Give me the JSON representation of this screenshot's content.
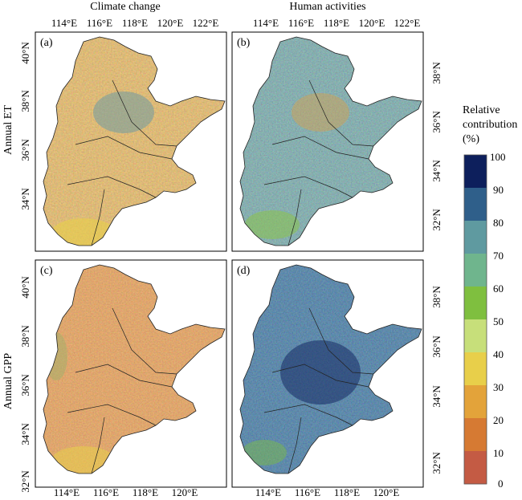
{
  "columns": {
    "left": "Climate change",
    "right": "Human activities"
  },
  "rows": {
    "top": "Annual ET",
    "bottom": "Annual GPP"
  },
  "panels": [
    {
      "label": "(a)",
      "variable": "Annual ET",
      "driver": "Climate change",
      "palette": "warm"
    },
    {
      "label": "(b)",
      "variable": "Annual ET",
      "driver": "Human activities",
      "palette": "cool"
    },
    {
      "label": "(c)",
      "variable": "Annual GPP",
      "driver": "Climate change",
      "palette": "warm2"
    },
    {
      "label": "(d)",
      "variable": "Annual GPP",
      "driver": "Human activities",
      "palette": "cool2"
    }
  ],
  "axes": {
    "top_lon_labels": [
      "114°E",
      "116°E",
      "118°E",
      "120°E",
      "122°E"
    ],
    "bottom_lon_labels": [
      "114°E",
      "116°E",
      "118°E",
      "120°E"
    ],
    "left_lat_labels_top": [
      "40°N",
      "38°N",
      "36°N",
      "34°N"
    ],
    "left_lat_labels_bottom": [
      "40°N",
      "38°N",
      "36°N",
      "34°N",
      "32°N"
    ],
    "right_lat_labels": [
      "38°N",
      "36°N",
      "34°N",
      "32°N"
    ]
  },
  "colorbar": {
    "title_lines": [
      "Relative",
      "contribution",
      "(%)"
    ],
    "ticks": [
      "100",
      "90",
      "80",
      "70",
      "60",
      "50",
      "40",
      "30",
      "20",
      "10",
      "0"
    ],
    "colors": [
      "#0d1f5c",
      "#2f5f8a",
      "#5f9aa0",
      "#6fb58d",
      "#7fbf3f",
      "#c7df7a",
      "#e8cf4a",
      "#e3a33a",
      "#d67a33",
      "#c45b44"
    ]
  }
}
